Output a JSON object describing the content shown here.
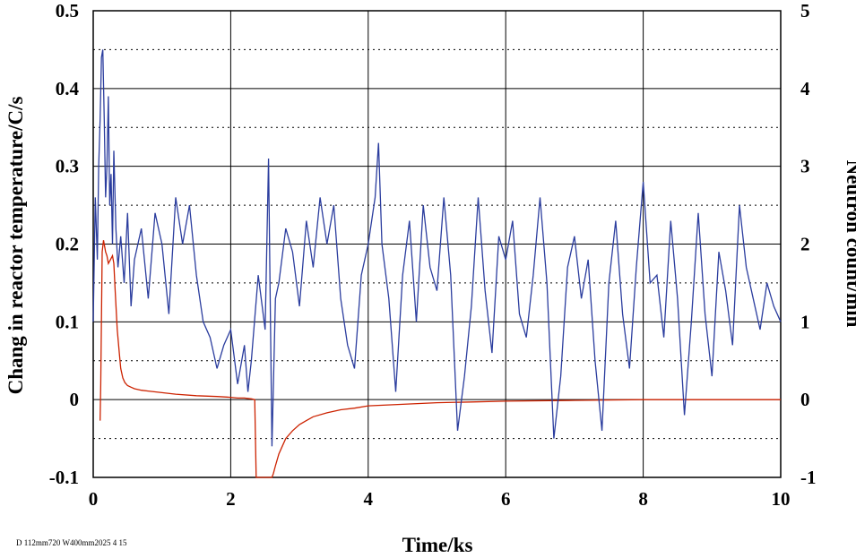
{
  "chart_data": {
    "type": "line",
    "title": "",
    "xlabel": "Time/ks",
    "ylabel_left": "Chang in reactor temperature/C/s",
    "ylabel_right": "Neutron count/min",
    "xlim": [
      0,
      10
    ],
    "ylim_left": [
      -0.1,
      0.5
    ],
    "ylim_right": [
      -1,
      5
    ],
    "x_ticks": [
      "0",
      "2",
      "4",
      "6",
      "8",
      "10"
    ],
    "y_left_ticks": [
      "0.5",
      "0.4",
      "0.3",
      "0.2",
      "0.1",
      "0",
      "-0.1"
    ],
    "y_right_ticks": [
      "5",
      "4",
      "3",
      "2",
      "1",
      "0",
      "-1"
    ],
    "grid": true,
    "footnote": "D 112mm720 W400mm2025 4 15",
    "colors": {
      "temperature": "#cc2200",
      "neutron": "#2b3d9e",
      "grid": "#000000"
    },
    "series": [
      {
        "axis": "left",
        "x": [
          0.1,
          0.11,
          0.13,
          0.15,
          0.18,
          0.2,
          0.22,
          0.25,
          0.28,
          0.3,
          0.32,
          0.35,
          0.38,
          0.4,
          0.43,
          0.46,
          0.5,
          0.55,
          0.6,
          0.7,
          0.8,
          1.0,
          1.2,
          1.5,
          1.8,
          2.0,
          2.1,
          2.2,
          2.3,
          2.35,
          2.37,
          2.38,
          2.4,
          2.45,
          2.5,
          2.55,
          2.6,
          2.62,
          2.65,
          2.7,
          2.75,
          2.8,
          2.9,
          3.0,
          3.1,
          3.2,
          3.4,
          3.6,
          3.8,
          4.0,
          4.5,
          5.0,
          5.5,
          6.0,
          7.0,
          8.0,
          9.0,
          10.0
        ],
        "y": [
          -0.027,
          0.02,
          0.19,
          0.205,
          0.19,
          0.185,
          0.175,
          0.18,
          0.185,
          0.175,
          0.14,
          0.09,
          0.06,
          0.04,
          0.028,
          0.022,
          0.018,
          0.016,
          0.014,
          0.012,
          0.011,
          0.009,
          0.007,
          0.005,
          0.004,
          0.003,
          0.002,
          0.002,
          0.001,
          0.0,
          -0.1,
          -0.1,
          -0.1,
          -0.1,
          -0.1,
          -0.1,
          -0.1,
          -0.095,
          -0.085,
          -0.07,
          -0.06,
          -0.05,
          -0.04,
          -0.032,
          -0.027,
          -0.022,
          -0.017,
          -0.013,
          -0.011,
          -0.008,
          -0.006,
          -0.004,
          -0.003,
          -0.002,
          -0.001,
          0.0,
          0.0,
          0.0
        ]
      },
      {
        "axis": "right",
        "x": [
          0.0,
          0.03,
          0.06,
          0.08,
          0.1,
          0.12,
          0.14,
          0.16,
          0.18,
          0.2,
          0.22,
          0.24,
          0.26,
          0.28,
          0.3,
          0.33,
          0.36,
          0.4,
          0.45,
          0.5,
          0.55,
          0.6,
          0.7,
          0.8,
          0.9,
          1.0,
          1.1,
          1.2,
          1.3,
          1.4,
          1.5,
          1.6,
          1.7,
          1.8,
          1.9,
          2.0,
          2.1,
          2.2,
          2.25,
          2.3,
          2.4,
          2.5,
          2.55,
          2.6,
          2.65,
          2.7,
          2.8,
          2.9,
          3.0,
          3.1,
          3.2,
          3.3,
          3.4,
          3.5,
          3.6,
          3.7,
          3.8,
          3.9,
          4.0,
          4.1,
          4.15,
          4.2,
          4.3,
          4.4,
          4.5,
          4.6,
          4.7,
          4.8,
          4.9,
          5.0,
          5.1,
          5.2,
          5.3,
          5.4,
          5.5,
          5.6,
          5.7,
          5.8,
          5.9,
          6.0,
          6.1,
          6.2,
          6.3,
          6.4,
          6.5,
          6.6,
          6.7,
          6.8,
          6.9,
          7.0,
          7.1,
          7.2,
          7.3,
          7.4,
          7.5,
          7.6,
          7.7,
          7.8,
          7.9,
          8.0,
          8.1,
          8.2,
          8.3,
          8.4,
          8.5,
          8.6,
          8.7,
          8.8,
          8.9,
          9.0,
          9.1,
          9.2,
          9.3,
          9.4,
          9.5,
          9.6,
          9.7,
          9.8,
          9.9,
          10.0
        ],
        "y": [
          1.0,
          2.6,
          1.8,
          3.0,
          3.6,
          4.4,
          4.5,
          3.6,
          2.6,
          3.0,
          3.9,
          2.5,
          2.9,
          2.0,
          3.2,
          2.2,
          1.7,
          2.1,
          1.5,
          2.4,
          1.2,
          1.8,
          2.2,
          1.3,
          2.4,
          2.0,
          1.1,
          2.6,
          2.0,
          2.5,
          1.6,
          1.0,
          0.8,
          0.4,
          0.7,
          0.9,
          0.2,
          0.7,
          0.1,
          0.5,
          1.6,
          0.9,
          3.1,
          -0.6,
          1.3,
          1.5,
          2.2,
          1.9,
          1.2,
          2.3,
          1.7,
          2.6,
          2.0,
          2.5,
          1.3,
          0.7,
          0.4,
          1.6,
          2.0,
          2.6,
          3.3,
          2.0,
          1.3,
          0.1,
          1.6,
          2.3,
          1.0,
          2.5,
          1.7,
          1.4,
          2.6,
          1.6,
          -0.4,
          0.3,
          1.2,
          2.6,
          1.4,
          0.6,
          2.1,
          1.8,
          2.3,
          1.1,
          0.8,
          1.6,
          2.6,
          1.5,
          -0.5,
          0.3,
          1.7,
          2.1,
          1.3,
          1.8,
          0.5,
          -0.4,
          1.5,
          2.3,
          1.1,
          0.4,
          1.7,
          2.8,
          1.5,
          1.6,
          0.8,
          2.3,
          1.3,
          -0.2,
          1.0,
          2.4,
          1.1,
          0.3,
          1.9,
          1.4,
          0.7,
          2.5,
          1.7,
          1.3,
          0.9,
          1.5,
          1.2,
          1.0
        ]
      }
    ]
  }
}
